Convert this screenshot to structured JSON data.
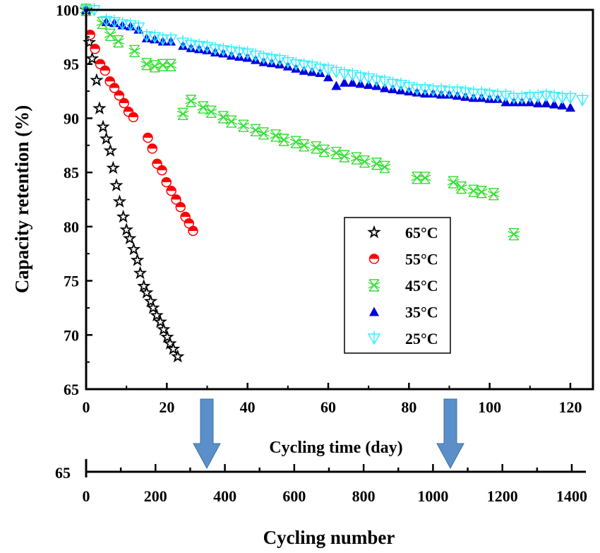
{
  "chart_data": {
    "type": "scatter",
    "xlabel": "Cycling time (day)",
    "ylabel": "Capacity retention (%)",
    "xlim": [
      0,
      126
    ],
    "ylim": [
      65,
      100
    ],
    "xticks": [
      0,
      20,
      40,
      60,
      80,
      100,
      120
    ],
    "yticks": [
      65,
      70,
      75,
      80,
      85,
      90,
      95,
      100
    ],
    "secondary_axis": {
      "label": "Cycling number",
      "ticks": [
        0,
        200,
        400,
        600,
        800,
        1000,
        1200,
        1400
      ],
      "start_label": "65"
    },
    "legend_position": "center-right",
    "grid": false,
    "series": [
      {
        "name": "65°C",
        "marker": "star",
        "color": "#000000",
        "x": [
          0,
          0.8,
          1.5,
          2.6,
          3.3,
          4.2,
          5,
          6,
          6.7,
          7.5,
          8.3,
          9.2,
          10,
          10.8,
          11.8,
          12.7,
          13.4,
          14.3,
          15,
          16,
          16.6,
          17.5,
          18.4,
          19.2,
          20.1,
          20.8,
          21.6,
          22.7
        ],
        "y": [
          100,
          97,
          95.5,
          93.5,
          90.9,
          89.2,
          88.1,
          87,
          85.4,
          83.8,
          82.3,
          80.9,
          79.7,
          78.9,
          77.9,
          76.9,
          75.7,
          74.5,
          73.9,
          73.1,
          72.5,
          71.8,
          71.2,
          70.5,
          69.8,
          69.2,
          68.7,
          68
        ]
      },
      {
        "name": "55°C",
        "marker": "half-circle",
        "color": "#ff0000",
        "x": [
          1,
          2.2,
          3.5,
          4.7,
          5.9,
          7,
          8.2,
          9.4,
          10.5,
          11.7,
          15.3,
          16.4,
          17.6,
          18.8,
          19.9,
          21.1,
          22.3,
          23.4,
          24.6,
          25.5,
          26.5
        ],
        "y": [
          97.7,
          96.4,
          95,
          94.4,
          93.4,
          92.8,
          92.1,
          91.4,
          90.6,
          90.1,
          88.2,
          87.2,
          85.8,
          85.2,
          84.1,
          83.3,
          82.5,
          81.8,
          80.9,
          80.3,
          79.6
        ]
      },
      {
        "name": "45°C",
        "marker": "hourglass-x",
        "color": "#33dd33",
        "x": [
          0,
          4,
          6,
          8,
          12,
          15,
          17,
          19,
          21,
          24,
          26,
          29,
          31,
          34,
          36,
          39,
          42,
          44,
          47,
          49,
          52,
          54,
          57,
          59,
          62,
          64,
          67,
          69,
          72,
          74,
          82,
          84,
          91,
          93,
          96,
          98,
          101,
          106
        ],
        "y": [
          100,
          98.8,
          97.7,
          97.1,
          96.2,
          95,
          94.8,
          94.9,
          94.9,
          90.4,
          91.6,
          91,
          90.6,
          90.1,
          89.7,
          89.3,
          88.9,
          88.6,
          88.4,
          88,
          87.8,
          87.5,
          87.3,
          87,
          86.8,
          86.5,
          86.3,
          86,
          85.8,
          85.5,
          84.5,
          84.5,
          84.1,
          83.6,
          83.3,
          83.2,
          83,
          79.3
        ]
      },
      {
        "name": "35°C",
        "marker": "triangle-up",
        "color": "#0000dd",
        "x": [
          0,
          5,
          7,
          9,
          11,
          13,
          15,
          17,
          19,
          21,
          24,
          26,
          28,
          30,
          32,
          34,
          36,
          38,
          40,
          42,
          44,
          46,
          48,
          50,
          52,
          54,
          56,
          58,
          60,
          62,
          64,
          66,
          68,
          70,
          72,
          74,
          76,
          78,
          80,
          82,
          84,
          86,
          88,
          90,
          92,
          94,
          96,
          98,
          100,
          102,
          104,
          106,
          108,
          110,
          112,
          114,
          116,
          118,
          120
        ],
        "y": [
          100,
          98.9,
          98.8,
          98.6,
          98.5,
          98.2,
          97.4,
          97.3,
          97.1,
          97.1,
          96.7,
          96.5,
          96.4,
          96.3,
          96.1,
          96,
          95.8,
          95.7,
          95.6,
          95.4,
          95.2,
          95.1,
          95,
          94.8,
          94.6,
          94.4,
          94.3,
          94.2,
          93.8,
          93,
          93.3,
          93.3,
          93.2,
          93.1,
          93,
          92.8,
          92.7,
          92.6,
          92.5,
          92.4,
          92.3,
          92.3,
          92.2,
          92.2,
          92.1,
          92,
          91.9,
          91.9,
          91.8,
          91.8,
          91.5,
          91.5,
          91.5,
          91.5,
          91.4,
          91.4,
          91.3,
          91.2,
          91
        ]
      },
      {
        "name": "25°C",
        "marker": "triangle-down",
        "color": "#33eeff",
        "x": [
          0,
          2,
          5,
          7,
          9,
          11,
          13,
          15,
          17,
          19,
          21,
          24,
          26,
          28,
          30,
          32,
          34,
          36,
          38,
          40,
          42,
          44,
          46,
          48,
          50,
          52,
          54,
          56,
          58,
          60,
          62,
          64,
          66,
          68,
          70,
          72,
          74,
          76,
          78,
          80,
          82,
          84,
          86,
          88,
          90,
          92,
          94,
          96,
          98,
          100,
          102,
          104,
          106,
          108,
          110,
          112,
          114,
          116,
          118,
          120,
          123
        ],
        "y": [
          100,
          100,
          99,
          98.9,
          98.7,
          98.6,
          98.4,
          97.6,
          97.5,
          97.3,
          97.3,
          97,
          96.8,
          96.7,
          96.6,
          96.4,
          96.3,
          96.2,
          96.1,
          96,
          95.8,
          95.6,
          95.5,
          95.4,
          95.2,
          95,
          94.9,
          94.8,
          94.6,
          94.5,
          94.3,
          94.1,
          94,
          93.8,
          93.7,
          93.5,
          93.4,
          93.2,
          93.1,
          92.9,
          92.7,
          92.7,
          92.6,
          92.6,
          92.5,
          92.5,
          92.4,
          92.3,
          92.3,
          92.2,
          92.1,
          92.1,
          91.9,
          91.9,
          92,
          92,
          92.1,
          92,
          91.9,
          91.9,
          91.7
        ]
      }
    ]
  }
}
